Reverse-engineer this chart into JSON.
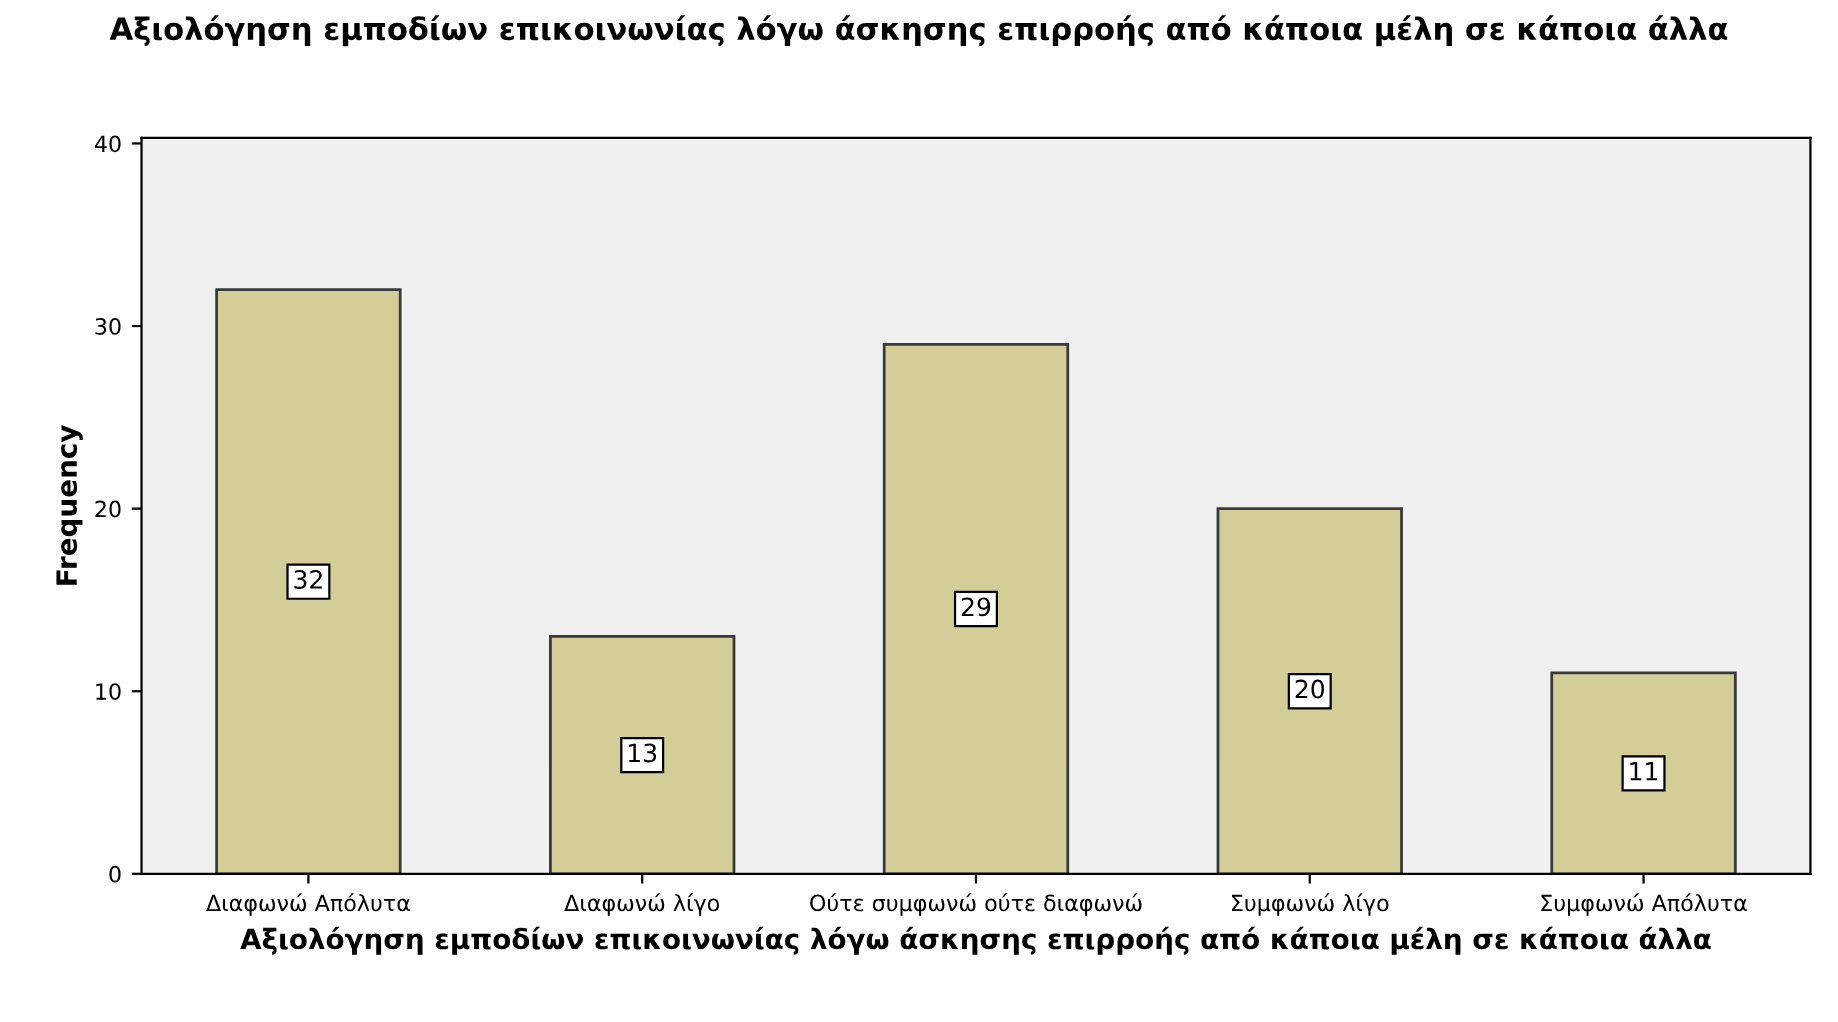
{
  "chart_data": {
    "type": "bar",
    "title": "Αξιολόγηση εμποδίων επικοινωνίας λόγω άσκησης επιρροής από κάποια μέλη σε κάποια άλλα",
    "xlabel": "Αξιολόγηση εμποδίων επικοινωνίας λόγω άσκησης επιρροής από κάποια μέλη σε κάποια άλλα",
    "ylabel": "Frequency",
    "categories": [
      "Διαφωνώ Απόλυτα",
      "Διαφωνώ λίγο",
      "Ούτε συμφωνώ ούτε διαφωνώ",
      "Συμφωνώ λίγο",
      "Συμφωνώ Απόλυτα"
    ],
    "values": [
      32,
      13,
      29,
      20,
      11
    ],
    "color": "#d3ce98",
    "ylim": [
      0,
      40.3
    ],
    "yticks": [
      0,
      10,
      20,
      30,
      40
    ],
    "data_labels": true,
    "grid": false
  }
}
